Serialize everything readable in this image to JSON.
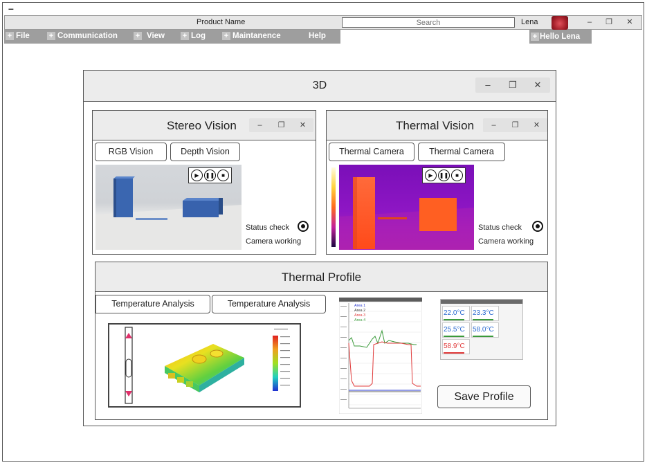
{
  "top_bar": {
    "minimize_glyph": "–"
  },
  "titlebar": {
    "product_name": "Product Name",
    "search_placeholder": "Search",
    "username": "Lena",
    "minimize": "–",
    "restore": "❐",
    "close": "✕"
  },
  "menu": {
    "items": [
      {
        "label": "File",
        "has_plus": true
      },
      {
        "label": "Communication",
        "has_plus": true
      },
      {
        "label": "View",
        "has_plus": true
      },
      {
        "label": "Log",
        "has_plus": true
      },
      {
        "label": "Maintanence",
        "has_plus": true
      },
      {
        "label": "Help",
        "has_plus": false
      }
    ],
    "plus_glyph": "+",
    "hello": "Hello Lena"
  },
  "window3d": {
    "title": "3D",
    "minimize": "–",
    "restore": "❐",
    "close": "✕"
  },
  "stereo": {
    "title": "Stereo Vision",
    "tabs": [
      "RGB Vision",
      "Depth Vision"
    ],
    "status_check": "Status check",
    "camera_status": "Camera working",
    "media": {
      "play": "▶",
      "pause": "❚❚",
      "stop": "■"
    }
  },
  "thermal": {
    "title": "Thermal Vision",
    "tabs": [
      "Thermal Camera",
      "Thermal Camera"
    ],
    "status_check": "Status check",
    "camera_status": "Camera working",
    "media": {
      "play": "▶",
      "pause": "❚❚",
      "stop": "■"
    }
  },
  "profile": {
    "title": "Thermal Profile",
    "tabs": [
      "Temperature Analysis",
      "Temperature Analysis"
    ],
    "save_label": "Save Profile",
    "readings": [
      "22.0°C",
      "23.3°C",
      "25.5°C",
      "58.0°C",
      "58.9°C"
    ],
    "chart_legend": [
      "Area 1",
      "Area 2",
      "Area 3",
      "Area 4"
    ]
  },
  "colors": {
    "menu_bg": "#9e9e9e",
    "header_bg": "#ececec",
    "thermal_hot": "#ff5a1e",
    "thermal_cold": "#8a10c8"
  }
}
